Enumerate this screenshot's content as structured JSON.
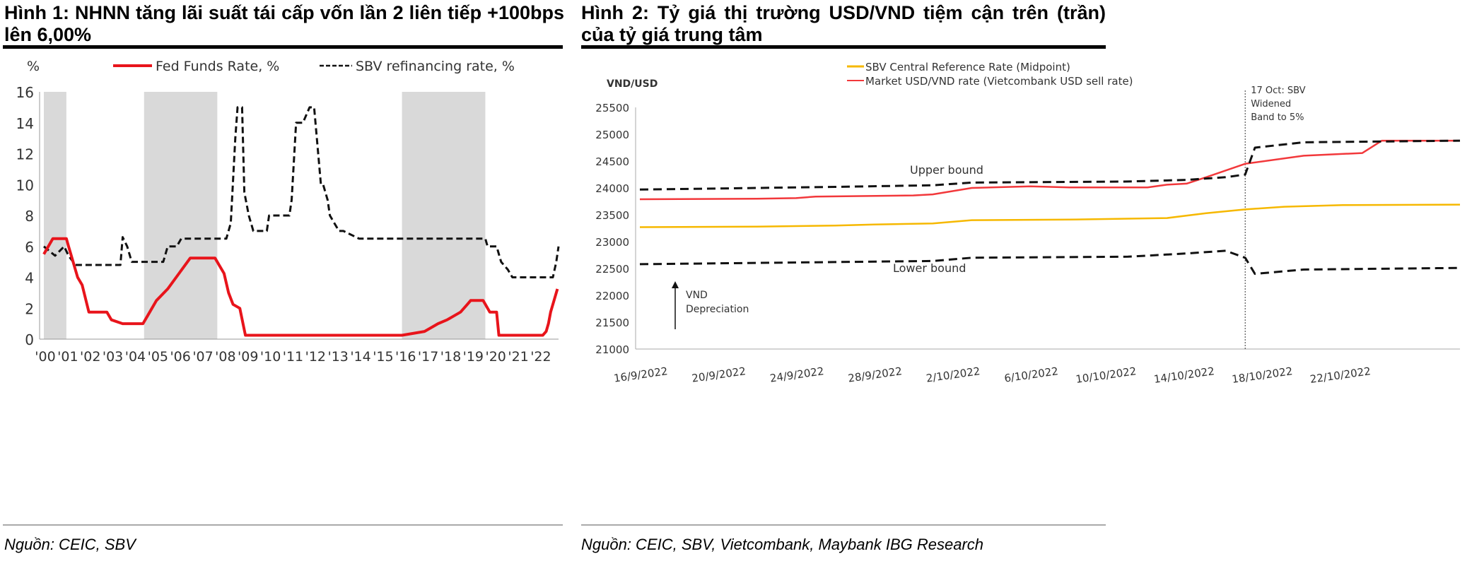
{
  "figures": [
    {
      "title": "Hình 1: NHNN  tăng lãi suất tái cấp vốn lần 2 liên tiếp +100bps lên 6,00%",
      "source": "Nguồn: CEIC, SBV"
    },
    {
      "title": "Hình 2: Tỷ giá thị trường USD/VND  tiệm cận trên (trần) của tỷ giá trung tâm",
      "source": "Nguồn: CEIC, SBV, Vietcombank, Maybank IBG Research"
    }
  ],
  "colors": {
    "fed": "#e8141b",
    "sbv": "#111111",
    "mid": "#f6b800",
    "market": "#f2383b",
    "shade": "#d9d9d9"
  },
  "chart_data": [
    {
      "type": "line",
      "ylabel": "%",
      "ylim": [
        0,
        16
      ],
      "yticks": [
        0,
        2,
        4,
        6,
        8,
        10,
        12,
        14,
        16
      ],
      "xlim": [
        2000,
        2022.85
      ],
      "xticks": [
        "'00",
        "'01",
        "'02",
        "'03",
        "'04",
        "'05",
        "'06",
        "'07",
        "'08",
        "'09",
        "'10",
        "'11",
        "'12",
        "'13",
        "'14",
        "'15",
        "'16",
        "'17",
        "'18",
        "'19",
        "'20",
        "'21",
        "'22"
      ],
      "shaded_periods": [
        [
          2000,
          2001
        ],
        [
          2004.45,
          2007.7
        ],
        [
          2015.9,
          2019.6
        ]
      ],
      "series": [
        {
          "name": "Fed Funds Rate, %",
          "style": "solid",
          "x": [
            2000,
            2000.4,
            2000.5,
            2001,
            2001.1,
            2001.3,
            2001.5,
            2001.7,
            2002,
            2002.8,
            2003,
            2003.5,
            2004.4,
            2004.6,
            2005,
            2005.5,
            2006,
            2006.5,
            2007.6,
            2007.8,
            2008,
            2008.2,
            2008.4,
            2008.7,
            2008.95,
            2015.9,
            2016.9,
            2017.2,
            2017.5,
            2017.9,
            2018.2,
            2018.5,
            2018.8,
            2018.95,
            2019.5,
            2019.6,
            2019.8,
            2020.1,
            2020.2,
            2022.15,
            2022.3,
            2022.4,
            2022.5,
            2022.65,
            2022.8
          ],
          "y": [
            5.5,
            6.5,
            6.5,
            6.5,
            6,
            5,
            4,
            3.5,
            1.75,
            1.75,
            1.25,
            1.0,
            1.0,
            1.5,
            2.5,
            3.25,
            4.25,
            5.25,
            5.25,
            4.75,
            4.25,
            3,
            2.25,
            2,
            0.25,
            0.25,
            0.5,
            0.75,
            1.0,
            1.25,
            1.5,
            1.75,
            2.25,
            2.5,
            2.5,
            2.25,
            1.75,
            1.75,
            0.25,
            0.25,
            0.5,
            1.0,
            1.75,
            2.5,
            3.25
          ]
        },
        {
          "name": "SBV refinancing rate, %",
          "style": "dashed",
          "x": [
            2000,
            2000.5,
            2000.9,
            2001.1,
            2001.4,
            2001.7,
            2003.4,
            2003.5,
            2003.7,
            2003.9,
            2005.3,
            2005.5,
            2005.9,
            2006.1,
            2008.1,
            2008.3,
            2008.5,
            2008.6,
            2008.8,
            2008.9,
            2009.1,
            2009.3,
            2009.9,
            2010.0,
            2010.9,
            2011.0,
            2011.2,
            2011.5,
            2011.8,
            2012.0,
            2012.3,
            2012.4,
            2012.6,
            2012.7,
            2013.1,
            2013.3,
            2014.0,
            2014.2,
            2019.6,
            2019.7,
            2020.1,
            2020.3,
            2020.6,
            2020.8,
            2022.6,
            2022.75,
            2022.85
          ],
          "y": [
            6,
            5.4,
            6,
            5.4,
            4.8,
            4.8,
            4.8,
            6.6,
            6,
            5,
            5,
            6,
            6,
            6.5,
            6.5,
            7.5,
            13,
            15,
            15,
            9.5,
            8,
            7,
            7,
            8,
            8,
            9,
            14,
            14,
            15,
            15,
            10,
            10,
            9,
            8,
            7,
            7,
            6.5,
            6.5,
            6.5,
            6,
            6,
            5,
            4.5,
            4,
            4,
            5,
            6
          ]
        }
      ]
    },
    {
      "type": "line",
      "ylabel": "VND/USD",
      "ylim": [
        21000,
        25500
      ],
      "yticks": [
        21000,
        21500,
        22000,
        22500,
        23000,
        23500,
        24000,
        24500,
        25000,
        25500
      ],
      "xlim": [
        0,
        42
      ],
      "x_unit": "days since 16/9/2022",
      "xticks": [
        {
          "day": 0,
          "label": "16/9/2022"
        },
        {
          "day": 4,
          "label": "20/9/2022"
        },
        {
          "day": 8,
          "label": "24/9/2022"
        },
        {
          "day": 12,
          "label": "28/9/2022"
        },
        {
          "day": 16,
          "label": "2/10/2022"
        },
        {
          "day": 20,
          "label": "6/10/2022"
        },
        {
          "day": 24,
          "label": "10/10/2022"
        },
        {
          "day": 28,
          "label": "14/10/2022"
        },
        {
          "day": 32,
          "label": "18/10/2022"
        },
        {
          "day": 36,
          "label": "22/10/2022"
        }
      ],
      "series": [
        {
          "name": "SBV Central Reference Rate (Midpoint)",
          "style": "solid",
          "color": "mid",
          "x": [
            0,
            6,
            10,
            12,
            15,
            17,
            22,
            27,
            29,
            31,
            33,
            36,
            42
          ],
          "y": [
            23270,
            23280,
            23300,
            23320,
            23340,
            23400,
            23410,
            23440,
            23530,
            23600,
            23650,
            23680,
            23690
          ]
        },
        {
          "name": "Market USD/VND rate  (Vietcombank USD sell rate)",
          "style": "solid",
          "color": "market",
          "x": [
            0,
            6,
            8,
            9,
            14,
            15,
            17,
            20,
            22,
            26,
            27,
            28,
            29,
            31,
            34,
            37,
            38,
            42
          ],
          "y": [
            23790,
            23800,
            23810,
            23840,
            23860,
            23880,
            24000,
            24030,
            24010,
            24010,
            24060,
            24080,
            24200,
            24450,
            24600,
            24650,
            24880,
            24880
          ]
        },
        {
          "name": "Upper bound",
          "style": "dashed",
          "color": "sbv",
          "legend": false,
          "x": [
            0,
            10,
            15,
            17,
            25,
            28,
            30,
            31,
            31.5,
            34,
            42
          ],
          "y": [
            23970,
            24020,
            24050,
            24100,
            24120,
            24150,
            24200,
            24250,
            24750,
            24850,
            24880
          ]
        },
        {
          "name": "Lower bound",
          "style": "dashed",
          "color": "sbv",
          "legend": false,
          "x": [
            0,
            10,
            15,
            17,
            25,
            28,
            30,
            31,
            31.5,
            34,
            42
          ],
          "y": [
            22580,
            22620,
            22640,
            22700,
            22720,
            22780,
            22830,
            22700,
            22400,
            22480,
            22510
          ]
        }
      ],
      "annotations": {
        "upper": "Upper bound",
        "lower": "Lower bound",
        "dep1": "VND",
        "dep2": "Depreciation",
        "event_day": 31,
        "event1": "17 Oct: SBV",
        "event2": "Widened",
        "event3": "Band to 5%"
      }
    }
  ]
}
